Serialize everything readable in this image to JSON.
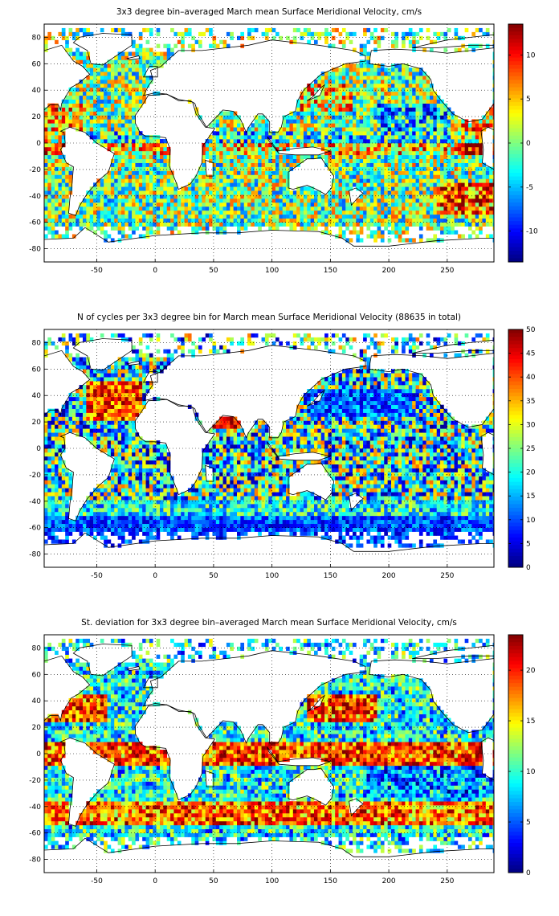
{
  "chart_data": [
    {
      "type": "heatmap",
      "title": "3x3 degree bin–averaged March mean Surface Meridional Velocity, cm/s",
      "xlabel": "",
      "ylabel": "",
      "xlim": [
        -95,
        290
      ],
      "ylim": [
        -90,
        90
      ],
      "xticks": [
        "-50",
        "0",
        "50",
        "100",
        "150",
        "200",
        "250"
      ],
      "yticks": [
        "80",
        "60",
        "40",
        "20",
        "0",
        "-20",
        "-40",
        "-60",
        "-80"
      ],
      "colorbar": {
        "range": [
          -13.5,
          13.5
        ],
        "ticks": [
          "10",
          "5",
          "0",
          "-5",
          "-10"
        ]
      },
      "grid": true,
      "colormap": "jet",
      "bin_size_deg": 3
    },
    {
      "type": "heatmap",
      "title": "N of cycles per 3x3 degree bin for March mean Surface Meridional Velocity (88635 in total)",
      "xlabel": "",
      "ylabel": "",
      "xlim": [
        -95,
        290
      ],
      "ylim": [
        -90,
        90
      ],
      "xticks": [
        "-50",
        "0",
        "50",
        "100",
        "150",
        "200",
        "250"
      ],
      "yticks": [
        "80",
        "60",
        "40",
        "20",
        "0",
        "-20",
        "-40",
        "-60",
        "-80"
      ],
      "colorbar": {
        "range": [
          0,
          50
        ],
        "ticks": [
          "50",
          "45",
          "40",
          "35",
          "30",
          "25",
          "20",
          "15",
          "10",
          "5",
          "0"
        ]
      },
      "grid": true,
      "colormap": "jet",
      "bin_size_deg": 3
    },
    {
      "type": "heatmap",
      "title": "St. deviation for 3x3 degree bin–averaged March mean Surface Meridional Velocity, cm/s",
      "xlabel": "",
      "ylabel": "",
      "xlim": [
        -95,
        290
      ],
      "ylim": [
        -90,
        90
      ],
      "xticks": [
        "-50",
        "0",
        "50",
        "100",
        "150",
        "200",
        "250"
      ],
      "yticks": [
        "80",
        "60",
        "40",
        "20",
        "0",
        "-20",
        "-40",
        "-60",
        "-80"
      ],
      "colorbar": {
        "range": [
          0,
          23.5
        ],
        "ticks": [
          "20",
          "15",
          "10",
          "5",
          "0"
        ]
      },
      "grid": true,
      "colormap": "jet",
      "bin_size_deg": 3
    }
  ]
}
